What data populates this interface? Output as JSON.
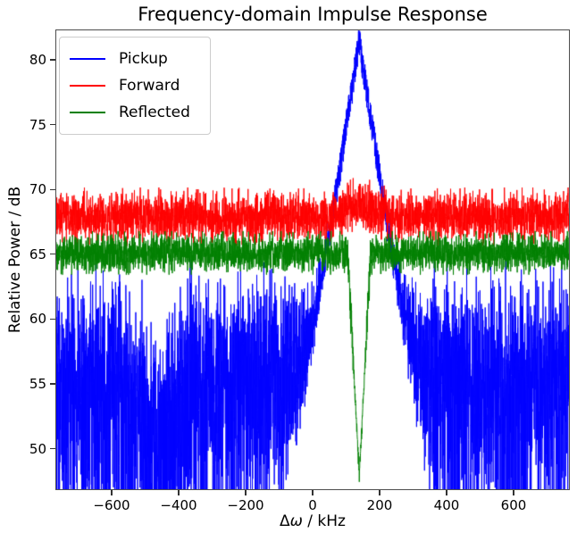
{
  "figure": {
    "title": "Frequency-domain Impulse Response",
    "background": "#ffffff"
  },
  "chart_data": {
    "type": "line",
    "title": "Frequency-domain Impulse Response",
    "xlabel": "Δω / kHz",
    "xlabel_parts": {
      "delta": "Δ",
      "omega": "ω",
      "rest": " / kHz"
    },
    "ylabel": "Relative Power / dB",
    "xlim": [
      -768,
      768
    ],
    "ylim": [
      46.8,
      82.34
    ],
    "xticks": [
      -600,
      -400,
      -200,
      0,
      200,
      400,
      600
    ],
    "yticks": [
      50,
      55,
      60,
      65,
      70,
      75,
      80
    ],
    "grid": false,
    "spine_color": "#4d4d4d",
    "legend": {
      "position": "upper-left",
      "entries": [
        {
          "label": "Pickup",
          "color": "#0000ff"
        },
        {
          "label": "Forward",
          "color": "#ff0000"
        },
        {
          "label": "Reflected",
          "color": "#008000"
        }
      ]
    },
    "seed": 42,
    "series": [
      {
        "name": "Pickup",
        "color": "#0000ff",
        "kind": "signal_plus_exponential_noise",
        "points": 4200,
        "noise_floor_db": 56.5,
        "noise_floor_dip": {
          "center_khz": -465,
          "depth_db": 4.5,
          "half_width_khz": 115
        },
        "peak": {
          "center_khz": 139,
          "top_db": 81.5,
          "slope_db_per_khz": 0.17
        },
        "observed": {
          "dense_band_db": [
            46.8,
            61
          ],
          "peak_apex_db": 81.5,
          "peak_apex_khz": 139
        }
      },
      {
        "name": "Forward",
        "color": "#ff0000",
        "kind": "gaussian_band",
        "points": 3600,
        "mean_db": 67.9,
        "sigma_db": 0.9,
        "clip_sigma": 2.5,
        "bump": {
          "center_khz": 139,
          "height_db": 0.9,
          "half_width_khz": 90
        },
        "observed": {
          "dense_band_db": [
            66,
            70.3
          ]
        }
      },
      {
        "name": "Reflected",
        "color": "#008000",
        "kind": "gaussian_band_notch",
        "points": 3600,
        "mean_db": 65.1,
        "sigma_db": 0.7,
        "clip_sigma": 2.4,
        "notch": {
          "center_khz": 139,
          "depth_db": 17.2,
          "slope_db_per_khz": 0.5,
          "min_db": 47.9
        },
        "observed": {
          "dense_band_db": [
            63.4,
            66.7
          ],
          "notch_min_db": 47.9,
          "notch_center_khz": 139
        }
      }
    ]
  }
}
